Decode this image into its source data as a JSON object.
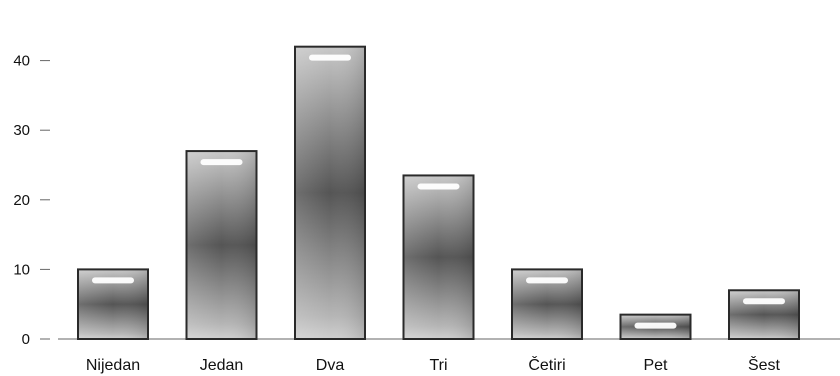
{
  "chart_data": {
    "type": "bar",
    "categories": [
      "Nijedan",
      "Jedan",
      "Dva",
      "Tri",
      "Četiri",
      "Pet",
      "Šest"
    ],
    "values": [
      10,
      27,
      42,
      23.5,
      10,
      3.5,
      7
    ],
    "ylim": [
      0,
      46
    ],
    "yticks": [
      0,
      10,
      20,
      30,
      40
    ],
    "grid": false,
    "legend": "none",
    "colors": {
      "bar_edge": "#2a2a2a",
      "bar_light": "#bdbdbd",
      "bar_dark": "#555555",
      "highlight": "#ffffff",
      "axis": "#666666"
    }
  }
}
